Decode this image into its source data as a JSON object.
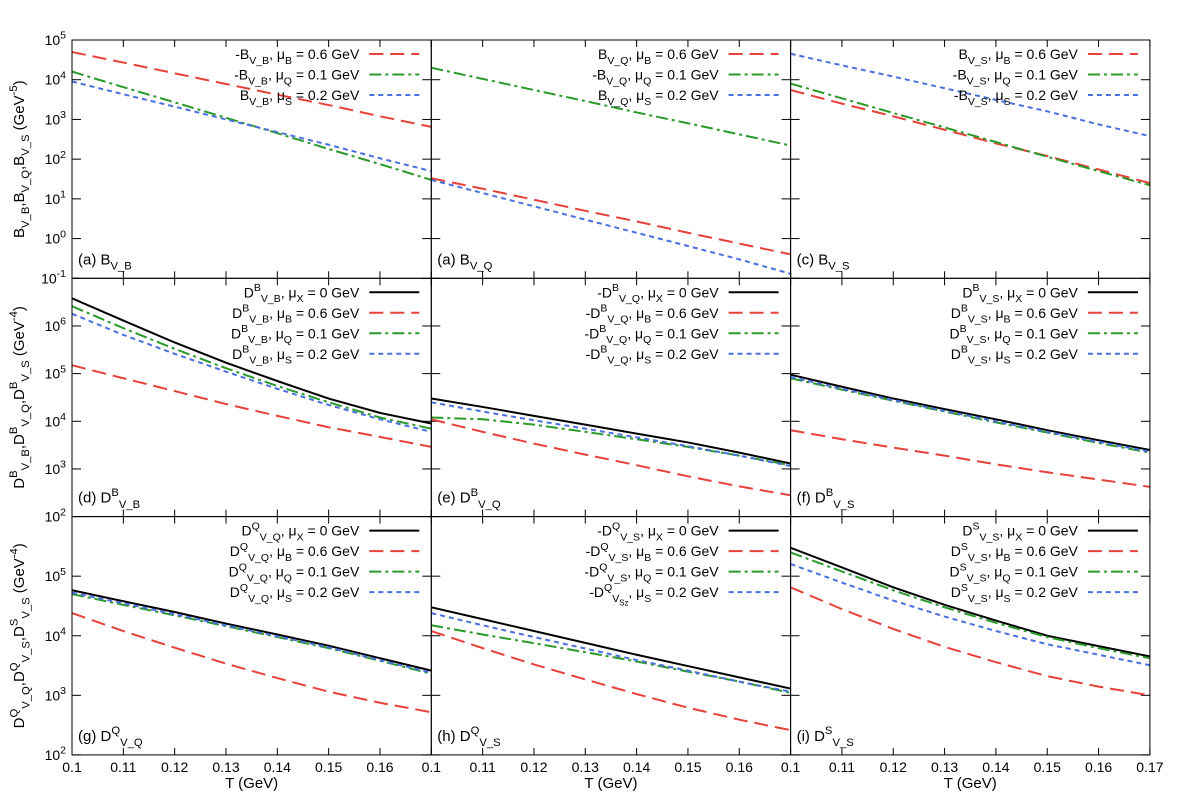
{
  "chart_data": [
    {
      "type": "line",
      "log": true,
      "label": "(a) B_{V_B}",
      "ylabel": "B_{V_B},B_{V_Q},B_{V_S} (GeV^{-5})",
      "x": [
        0.1,
        0.11,
        0.12,
        0.13,
        0.14,
        0.15,
        0.16,
        0.17
      ],
      "xlim": [
        0.1,
        0.17
      ],
      "xticks": [
        0.1,
        0.11,
        0.12,
        0.13,
        0.14,
        0.15,
        0.16,
        0.17
      ],
      "ylim": [
        0.1,
        100000
      ],
      "yticks": [
        {
          "value": 0.1,
          "label": "10^{-1}"
        },
        {
          "value": 1,
          "label": "10^{0}"
        },
        {
          "value": 10,
          "label": "10^{1}"
        },
        {
          "value": 100,
          "label": "10^{2}"
        },
        {
          "value": 1000,
          "label": "10^{3}"
        },
        {
          "value": 10000,
          "label": "10^{4}"
        },
        {
          "value": 100000,
          "label": "10^{5}"
        }
      ],
      "series": [
        {
          "name": "-B_{V_B}, μ_{B} = 0.6 GeV",
          "color": "#e8413a",
          "dash": "long",
          "values": [
            50000,
            27000,
            14500,
            7800,
            4200,
            2300,
            1200,
            650
          ]
        },
        {
          "name": "-B_{V_B}, μ_{Q} = 0.1 GeV",
          "color": "#2a9a2a",
          "dash": "dashdot",
          "values": [
            16000,
            6500,
            2700,
            1100,
            450,
            180,
            75,
            30
          ]
        },
        {
          "name": "B_{V_B}, μ_{S} = 0.2 GeV",
          "color": "#4a6fe0",
          "dash": "short",
          "values": [
            9000,
            4300,
            2100,
            1000,
            480,
            230,
            105,
            50
          ]
        }
      ]
    },
    {
      "type": "line",
      "log": true,
      "label": "(a) B_{V_Q}",
      "x": [
        0.1,
        0.11,
        0.12,
        0.13,
        0.14,
        0.15,
        0.16,
        0.17
      ],
      "xlim": [
        0.1,
        0.17
      ],
      "xticks": [
        0.1,
        0.11,
        0.12,
        0.13,
        0.14,
        0.15,
        0.16,
        0.17
      ],
      "ylim": [
        0.1,
        100000
      ],
      "yticks": [
        0.1,
        1,
        10,
        100,
        1000,
        10000,
        100000
      ],
      "series": [
        {
          "name": "B_{V_Q}, μ_{B} = 0.6 GeV",
          "color": "#e8413a",
          "dash": "long",
          "values": [
            33,
            18,
            9.5,
            5,
            2.7,
            1.4,
            0.75,
            0.4
          ]
        },
        {
          "name": "-B_{V_Q}, μ_{Q} = 0.1 GeV",
          "color": "#2a9a2a",
          "dash": "dashdot",
          "values": [
            20000,
            10500,
            5500,
            2900,
            1500,
            800,
            420,
            220
          ]
        },
        {
          "name": "B_{V_Q}, μ_{S} = 0.2 GeV",
          "color": "#4a6fe0",
          "dash": "short",
          "values": [
            30,
            14,
            6.5,
            3,
            1.4,
            0.65,
            0.3,
            0.13
          ]
        }
      ]
    },
    {
      "type": "line",
      "log": true,
      "label": "(c) B_{V_S}",
      "x": [
        0.1,
        0.11,
        0.12,
        0.13,
        0.14,
        0.15,
        0.16,
        0.17
      ],
      "xlim": [
        0.1,
        0.17
      ],
      "xticks": [
        0.1,
        0.11,
        0.12,
        0.13,
        0.14,
        0.15,
        0.16,
        0.17
      ],
      "ylim": [
        0.1,
        100000
      ],
      "yticks": [
        0.1,
        1,
        10,
        100,
        1000,
        10000,
        100000
      ],
      "series": [
        {
          "name": "B_{V_S}, μ_{B} = 0.6 GeV",
          "color": "#e8413a",
          "dash": "long",
          "values": [
            5500,
            2500,
            1200,
            550,
            250,
            120,
            55,
            25
          ]
        },
        {
          "name": "-B_{V_S}, μ_{Q} = 0.1 GeV",
          "color": "#2a9a2a",
          "dash": "dashdot",
          "values": [
            8000,
            3400,
            1450,
            630,
            270,
            115,
            50,
            22
          ]
        },
        {
          "name": "-B_{V_S}, μ_{S} = 0.2 GeV",
          "color": "#4a6fe0",
          "dash": "short",
          "values": [
            45000,
            23000,
            12000,
            6100,
            3100,
            1600,
            750,
            380
          ]
        }
      ]
    },
    {
      "type": "line",
      "log": true,
      "label": "(d) D^{B}_{V_B}",
      "ylabel": "D^{B}_{V_B},D^{B}_{V_Q},D^{B}_{V_S} (GeV^{-4})",
      "x": [
        0.1,
        0.11,
        0.12,
        0.13,
        0.14,
        0.15,
        0.16,
        0.17
      ],
      "xlim": [
        0.1,
        0.17
      ],
      "xticks": [
        0.1,
        0.11,
        0.12,
        0.13,
        0.14,
        0.15,
        0.16,
        0.17
      ],
      "ylim": [
        100,
        10000000
      ],
      "yticks": [
        {
          "value": 100,
          "label": "10^{2}"
        },
        {
          "value": 1000,
          "label": "10^{3}"
        },
        {
          "value": 10000,
          "label": "10^{4}"
        },
        {
          "value": 100000,
          "label": "10^{5}"
        },
        {
          "value": 1000000,
          "label": "10^{6}"
        }
      ],
      "series": [
        {
          "name": "D^{B}_{V_B}, μ_{X} = 0 GeV",
          "color": "#000000",
          "dash": "solid",
          "values": [
            3800000,
            1300000,
            450000,
            170000,
            70000,
            30000,
            15000,
            9000
          ]
        },
        {
          "name": "D^{B}_{V_B}, μ_{B} = 0.6 GeV",
          "color": "#e8413a",
          "dash": "long",
          "values": [
            150000,
            80000,
            43000,
            23000,
            13000,
            7500,
            4700,
            2900
          ]
        },
        {
          "name": "D^{B}_{V_B}, μ_{Q} = 0.1 GeV",
          "color": "#2a9a2a",
          "dash": "dashdot",
          "values": [
            2600000,
            900000,
            330000,
            130000,
            55000,
            25000,
            12000,
            7000
          ]
        },
        {
          "name": "D^{B}_{V_B}, μ_{S} = 0.2 GeV",
          "color": "#4a6fe0",
          "dash": "short",
          "values": [
            1800000,
            650000,
            260000,
            110000,
            48000,
            22000,
            11000,
            6000
          ]
        }
      ]
    },
    {
      "type": "line",
      "log": true,
      "label": "(e) D^{B}_{V_Q}",
      "x": [
        0.1,
        0.11,
        0.12,
        0.13,
        0.14,
        0.15,
        0.16,
        0.17
      ],
      "xlim": [
        0.1,
        0.17
      ],
      "xticks": [
        0.1,
        0.11,
        0.12,
        0.13,
        0.14,
        0.15,
        0.16,
        0.17
      ],
      "ylim": [
        100,
        10000000
      ],
      "yticks": [
        100,
        1000,
        10000,
        100000,
        1000000
      ],
      "series": [
        {
          "name": "-D^{B}_{V_Q}, μ_{X} = 0 GeV",
          "color": "#000000",
          "dash": "solid",
          "values": [
            30000,
            20000,
            13000,
            8500,
            5500,
            3600,
            2200,
            1300
          ]
        },
        {
          "name": "-D^{B}_{V_Q}, μ_{B} = 0.6 GeV",
          "color": "#e8413a",
          "dash": "long",
          "values": [
            11000,
            6000,
            3400,
            2000,
            1200,
            700,
            430,
            280
          ]
        },
        {
          "name": "-D^{B}_{V_Q}, μ_{Q} = 0.1 GeV",
          "color": "#2a9a2a",
          "dash": "dashdot",
          "values": [
            12000,
            11000,
            8500,
            6000,
            4200,
            2900,
            1900,
            1200
          ]
        },
        {
          "name": "-D^{B}_{V_Q}, μ_{S} = 0.2 GeV",
          "color": "#4a6fe0",
          "dash": "short",
          "values": [
            25000,
            16000,
            10500,
            7000,
            4600,
            3000,
            1900,
            1150
          ]
        }
      ]
    },
    {
      "type": "line",
      "log": true,
      "label": "(f) D^{B}_{V_S}",
      "x": [
        0.1,
        0.11,
        0.12,
        0.13,
        0.14,
        0.15,
        0.16,
        0.17
      ],
      "xlim": [
        0.1,
        0.17
      ],
      "xticks": [
        0.1,
        0.11,
        0.12,
        0.13,
        0.14,
        0.15,
        0.16,
        0.17
      ],
      "ylim": [
        100,
        10000000
      ],
      "yticks": [
        100,
        1000,
        10000,
        100000,
        1000000
      ],
      "series": [
        {
          "name": "D^{B}_{V_S}, μ_{X} = 0 GeV",
          "color": "#000000",
          "dash": "solid",
          "values": [
            95000,
            53000,
            30000,
            18000,
            11000,
            6500,
            4000,
            2500
          ]
        },
        {
          "name": "D^{B}_{V_S}, μ_{B} = 0.6 GeV",
          "color": "#e8413a",
          "dash": "long",
          "values": [
            6500,
            4200,
            2800,
            1900,
            1250,
            850,
            600,
            420
          ]
        },
        {
          "name": "D^{B}_{V_S}, μ_{Q} = 0.1 GeV",
          "color": "#2a9a2a",
          "dash": "dashdot",
          "values": [
            80000,
            46000,
            27000,
            16000,
            9500,
            5800,
            3500,
            2200
          ]
        },
        {
          "name": "D^{B}_{V_S}, μ_{S} = 0.2 GeV",
          "color": "#4a6fe0",
          "dash": "short",
          "values": [
            85000,
            48000,
            28000,
            16500,
            10000,
            6000,
            3700,
            2300
          ]
        }
      ]
    },
    {
      "type": "line",
      "log": true,
      "label": "(g) D^{Q}_{V_Q}",
      "ylabel": "D^{Q}_{V_Q},D^{Q}_{V_S},D^{S}_{V_S} (GeV^{-4})",
      "xlabel": "T (GeV)",
      "x": [
        0.1,
        0.11,
        0.12,
        0.13,
        0.14,
        0.15,
        0.16,
        0.17
      ],
      "xlim": [
        0.1,
        0.17
      ],
      "xticks": [
        0.1,
        0.11,
        0.12,
        0.13,
        0.14,
        0.15,
        0.16
      ],
      "ylim": [
        100,
        1000000
      ],
      "yticks": [
        {
          "value": 100,
          "label": "10^{2}"
        },
        {
          "value": 1000,
          "label": "10^{3}"
        },
        {
          "value": 10000,
          "label": "10^{4}"
        },
        {
          "value": 100000,
          "label": "10^{5}"
        }
      ],
      "series": [
        {
          "name": "D^{Q}_{V_Q}, μ_{X} = 0 GeV",
          "color": "#000000",
          "dash": "solid",
          "values": [
            58000,
            38000,
            25000,
            16000,
            10500,
            6800,
            4200,
            2600
          ]
        },
        {
          "name": "D^{Q}_{V_Q}, μ_{B} = 0.6 GeV",
          "color": "#e8413a",
          "dash": "long",
          "values": [
            24000,
            12000,
            6300,
            3400,
            1950,
            1150,
            750,
            520
          ]
        },
        {
          "name": "D^{Q}_{V_Q}, μ_{Q} = 0.1 GeV",
          "color": "#2a9a2a",
          "dash": "dashdot",
          "values": [
            50000,
            33000,
            22000,
            14500,
            9500,
            6200,
            3800,
            2300
          ]
        },
        {
          "name": "D^{Q}_{V_Q}, μ_{S} = 0.2 GeV",
          "color": "#4a6fe0",
          "dash": "short",
          "values": [
            53000,
            35000,
            23000,
            15000,
            9800,
            6400,
            3900,
            2400
          ]
        }
      ]
    },
    {
      "type": "line",
      "log": true,
      "label": "(h) D^{Q}_{V_S}",
      "xlabel": "T (GeV)",
      "x": [
        0.1,
        0.11,
        0.12,
        0.13,
        0.14,
        0.15,
        0.16,
        0.17
      ],
      "xlim": [
        0.1,
        0.17
      ],
      "xticks": [
        0.1,
        0.11,
        0.12,
        0.13,
        0.14,
        0.15,
        0.16
      ],
      "ylim": [
        100,
        1000000
      ],
      "yticks": [
        100,
        1000,
        10000,
        100000
      ],
      "series": [
        {
          "name": "-D^{Q}_{V_S}, μ_{X} = 0 GeV",
          "color": "#000000",
          "dash": "solid",
          "values": [
            30000,
            19000,
            12000,
            7600,
            4800,
            3100,
            2000,
            1300
          ]
        },
        {
          "name": "-D^{Q}_{V_S}, μ_{B} = 0.6 GeV",
          "color": "#e8413a",
          "dash": "long",
          "values": [
            12000,
            6200,
            3300,
            1850,
            1050,
            620,
            390,
            260
          ]
        },
        {
          "name": "-D^{Q}_{V_S}, μ_{Q} = 0.1 GeV",
          "color": "#2a9a2a",
          "dash": "dashdot",
          "values": [
            15000,
            10500,
            7500,
            5300,
            3700,
            2500,
            1700,
            1100
          ]
        },
        {
          "name": "-D^{Q}_{V_{Sz}}, μ_{S} = 0.2 GeV",
          "color": "#4a6fe0",
          "dash": "short",
          "values": [
            24000,
            15000,
            9500,
            6100,
            3900,
            2600,
            1700,
            1150
          ]
        }
      ]
    },
    {
      "type": "line",
      "log": true,
      "label": "(i) D^{S}_{V_S}",
      "xlabel": "T (GeV)",
      "x": [
        0.1,
        0.11,
        0.12,
        0.13,
        0.14,
        0.15,
        0.16,
        0.17
      ],
      "xlim": [
        0.1,
        0.17
      ],
      "xticks": [
        0.1,
        0.11,
        0.12,
        0.13,
        0.14,
        0.15,
        0.16,
        0.17
      ],
      "ylim": [
        100,
        1000000
      ],
      "yticks": [
        100,
        1000,
        10000,
        100000
      ],
      "series": [
        {
          "name": "D^{S}_{V_S}, μ_{X} = 0 GeV",
          "color": "#000000",
          "dash": "solid",
          "values": [
            300000,
            140000,
            65000,
            33000,
            18000,
            10000,
            6700,
            4500
          ]
        },
        {
          "name": "D^{S}_{V_S}, μ_{B} = 0.6 GeV",
          "color": "#e8413a",
          "dash": "long",
          "values": [
            65000,
            28000,
            13000,
            6500,
            3600,
            2100,
            1400,
            1000
          ]
        },
        {
          "name": "D^{S}_{V_S}, μ_{Q} = 0.1 GeV",
          "color": "#2a9a2a",
          "dash": "dashdot",
          "values": [
            250000,
            120000,
            58000,
            30000,
            16500,
            9500,
            6200,
            4200
          ]
        },
        {
          "name": "D^{S}_{V_S}, μ_{S} = 0.2 GeV",
          "color": "#4a6fe0",
          "dash": "short",
          "values": [
            160000,
            78000,
            39000,
            21000,
            12000,
            7200,
            4800,
            3200
          ]
        }
      ]
    }
  ]
}
